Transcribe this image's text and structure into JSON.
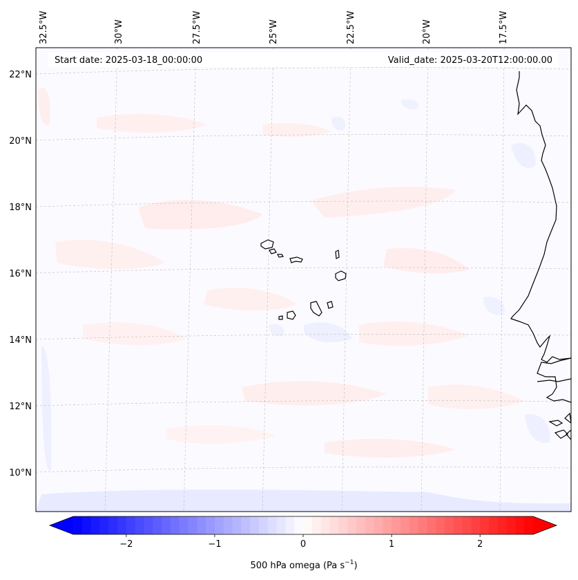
{
  "header": {
    "start_date": "Start date: 2025-03-18_00:00:00",
    "valid_date": "Valid_date: 2025-03-20T12:00:00.00"
  },
  "map": {
    "lon_labels": [
      "32.5°W",
      "30°W",
      "27.5°W",
      "25°W",
      "22.5°W",
      "20°W",
      "17.5°W"
    ],
    "lat_labels": [
      "22°N",
      "20°N",
      "18°N",
      "16°N",
      "14°N",
      "12°N",
      "10°N"
    ],
    "coastline_color": "#000000",
    "gridline_color": "#b0b0b0"
  },
  "colorbar": {
    "ticks": [
      "−2",
      "−1",
      "0",
      "1",
      "2"
    ],
    "tick_values": [
      -2,
      -1,
      0,
      1,
      2
    ],
    "range": [
      -2.6,
      2.6
    ],
    "label_main": "500 hPa omega (Pa s",
    "label_sup": "−1",
    "label_end": ")",
    "colormap": "bwr",
    "min_color": "#0000ff",
    "mid_color": "#ffffff",
    "max_color": "#ff0000"
  }
}
